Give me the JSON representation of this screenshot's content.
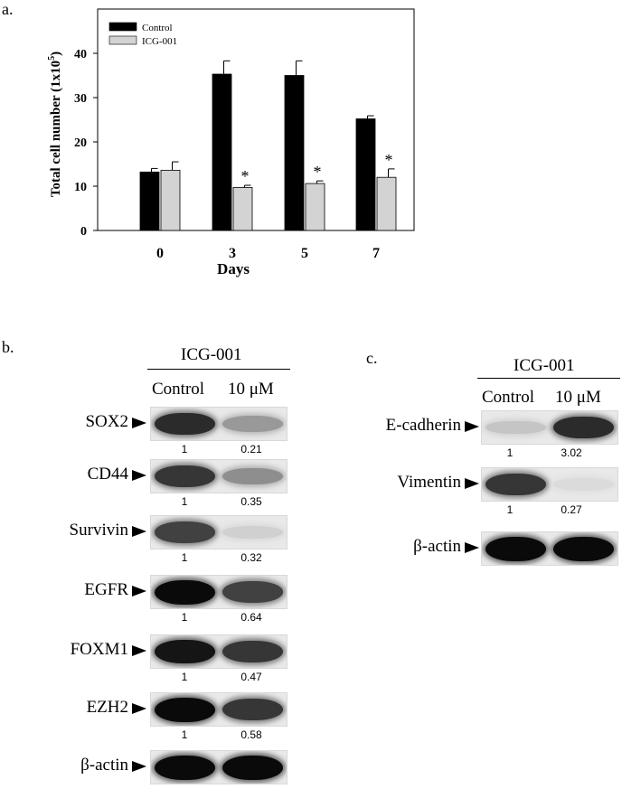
{
  "panel_a": {
    "label": "a.",
    "chart_data": {
      "type": "bar",
      "categories": [
        "0",
        "3",
        "5",
        "7"
      ],
      "series": [
        {
          "name": "Control",
          "values": [
            13.2,
            35.3,
            35.0,
            25.2
          ],
          "errors": [
            0.8,
            3.0,
            3.3,
            0.7
          ],
          "color": "#000000"
        },
        {
          "name": "ICG-001",
          "values": [
            13.6,
            9.7,
            10.6,
            12.0
          ],
          "errors": [
            1.9,
            0.5,
            0.6,
            1.9
          ],
          "color": "#d3d3d3"
        }
      ],
      "significance": [
        "",
        "*",
        "*",
        "*"
      ],
      "significance_mark": "*",
      "xlabel": "Days",
      "ylabel": "Total cell number (1x10",
      "ylabel_sup": "5",
      "ylabel_tail": ")",
      "ylim": [
        0,
        50
      ],
      "yticks": [
        0,
        10,
        20,
        30,
        40
      ],
      "grid": false,
      "legend": "top-left"
    }
  },
  "panel_b": {
    "label": "b.",
    "treatment": "ICG-001",
    "columns": [
      "Control",
      "10 μM"
    ],
    "rows": [
      {
        "name": "SOX2",
        "ratios": [
          "1",
          "0.21"
        ],
        "intensity": [
          0.85,
          0.35
        ]
      },
      {
        "name": "CD44",
        "ratios": [
          "1",
          "0.35"
        ],
        "intensity": [
          0.8,
          0.4
        ]
      },
      {
        "name": "Survivin",
        "ratios": [
          "1",
          "0.32"
        ],
        "intensity": [
          0.75,
          0.1
        ]
      },
      {
        "name": "EGFR",
        "ratios": [
          "1",
          "0.64"
        ],
        "intensity": [
          1.0,
          0.75
        ]
      },
      {
        "name": "FOXM1",
        "ratios": [
          "1",
          "0.47"
        ],
        "intensity": [
          0.95,
          0.8
        ]
      },
      {
        "name": "EZH2",
        "ratios": [
          "1",
          "0.58"
        ],
        "intensity": [
          1.0,
          0.8
        ]
      },
      {
        "name": "β-actin",
        "ratios": null,
        "intensity": [
          1.0,
          1.0
        ]
      }
    ]
  },
  "panel_c": {
    "label": "c.",
    "treatment": "ICG-001",
    "columns": [
      "Control",
      "10 μM"
    ],
    "rows": [
      {
        "name": "E-cadherin",
        "ratios": [
          "1",
          "3.02"
        ],
        "intensity": [
          0.15,
          0.85
        ]
      },
      {
        "name": "Vimentin",
        "ratios": [
          "1",
          "0.27"
        ],
        "intensity": [
          0.8,
          0.05
        ]
      },
      {
        "name": "β-actin",
        "ratios": null,
        "intensity": [
          1.0,
          1.0
        ]
      }
    ]
  }
}
